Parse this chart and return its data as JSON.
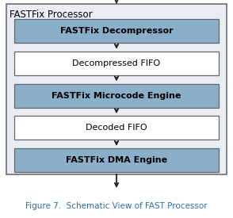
{
  "title": "FASTFix Processor",
  "caption": "Figure 7.  Schematic View of FAST Processor",
  "caption_color": "#2E6DA4",
  "outer_box_facecolor": "#E8EEF4",
  "outer_box_edgecolor": "#777777",
  "blocks": [
    {
      "label": "FASTFix Decompressor",
      "bg": "#8AAFC8",
      "edge": "#666666",
      "text_color": "black",
      "bold": true
    },
    {
      "label": "Decompressed FIFO",
      "bg": "#FFFFFF",
      "edge": "#666666",
      "text_color": "black",
      "bold": false
    },
    {
      "label": "FASTFix Microcode Engine",
      "bg": "#8AAFC8",
      "edge": "#666666",
      "text_color": "black",
      "bold": true
    },
    {
      "label": "Decoded FIFO",
      "bg": "#FFFFFF",
      "edge": "#666666",
      "text_color": "black",
      "bold": false
    },
    {
      "label": "FASTFix DMA Engine",
      "bg": "#8AAFC8",
      "edge": "#666666",
      "text_color": "black",
      "bold": true
    }
  ],
  "arrow_color": "#222222",
  "block_fontsize": 8.0,
  "title_fontsize": 8.5,
  "caption_fontsize": 7.5,
  "fig_width": 2.94,
  "fig_height": 2.75,
  "dpi": 100
}
